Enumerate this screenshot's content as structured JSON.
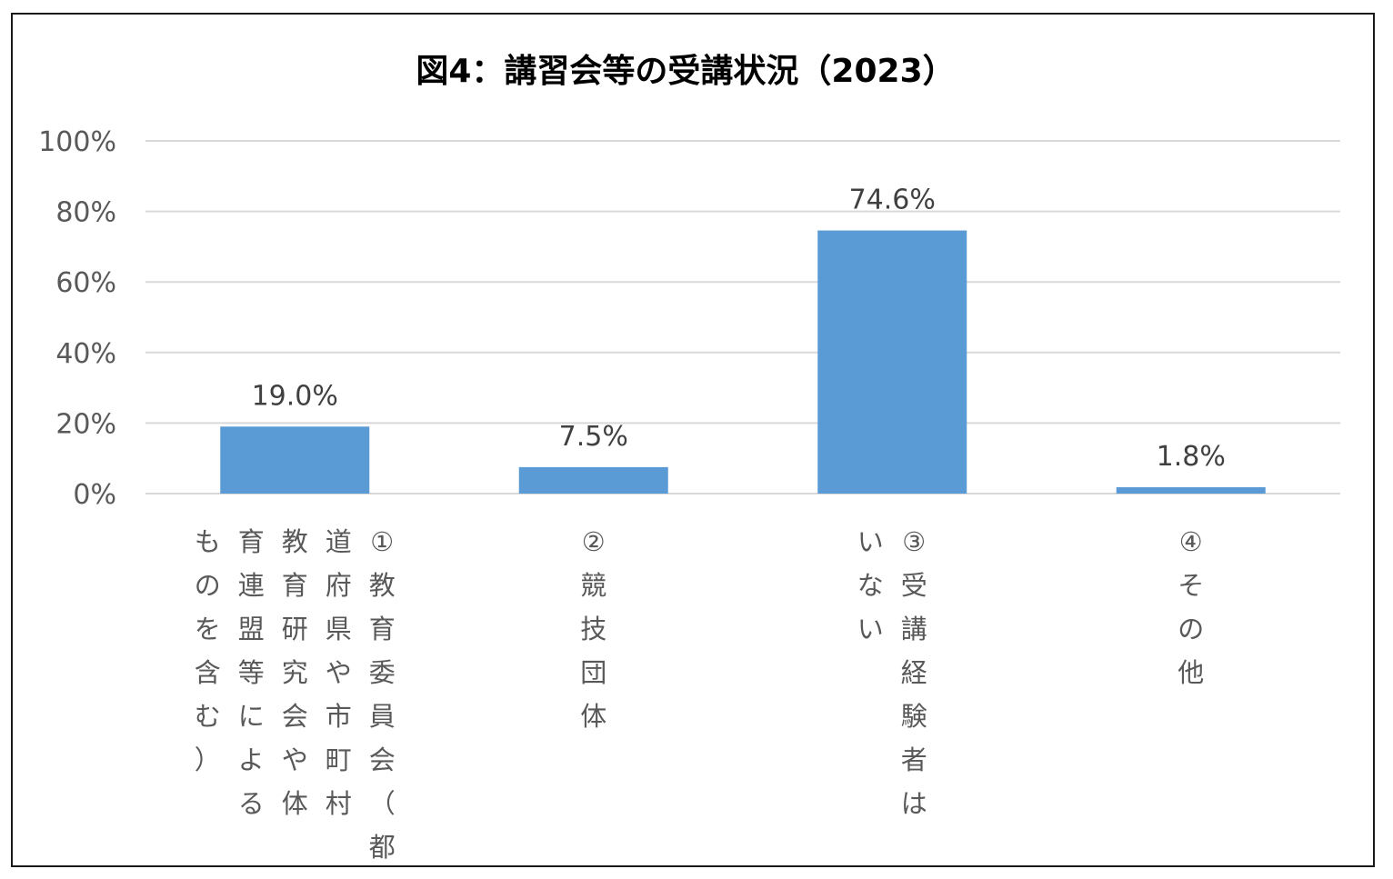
{
  "chart_data": {
    "type": "bar",
    "title": "図4：講習会等の受講状況（2023）",
    "categories": [
      "①教育委員会（都道府県や市町村教育研究会や体育連盟等によるものを含む）",
      "②競技団体",
      "③受講経験者はいない",
      "④その他"
    ],
    "category_columns": [
      [
        "①教育委員会（都",
        "道府県や市町村",
        "教育研究会や体",
        "育連盟等による",
        "ものを含む）"
      ],
      [
        "②競技団体"
      ],
      [
        "③受講経験者は",
        "いない"
      ],
      [
        "④その他"
      ]
    ],
    "values": [
      19.0,
      7.5,
      74.6,
      1.8
    ],
    "value_labels": [
      "19.0%",
      "7.5%",
      "74.6%",
      "1.8%"
    ],
    "y_ticks": [
      "0%",
      "20%",
      "40%",
      "60%",
      "80%",
      "100%"
    ],
    "ylim": [
      0,
      100
    ],
    "unit": "%",
    "grid": true,
    "bar_color": "#5b9bd5",
    "grid_color": "#d9d9d9"
  }
}
